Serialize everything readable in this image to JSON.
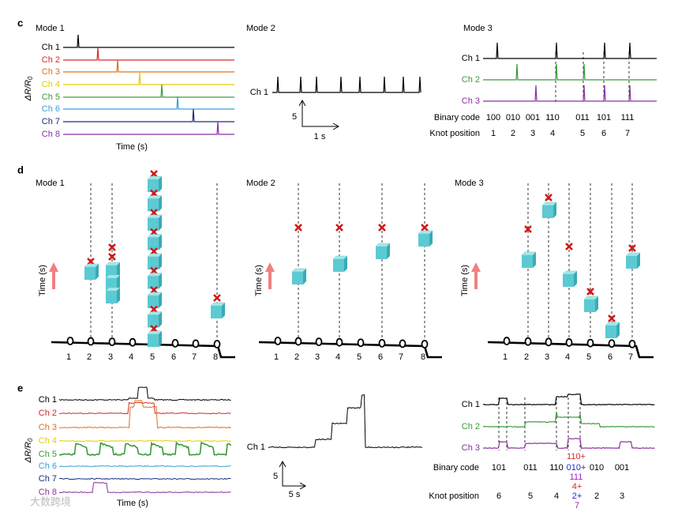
{
  "panel_c": {
    "label": "c",
    "mode1": {
      "title": "Mode 1",
      "y_label": {
        "main": "ΔR/R",
        "sub": "0"
      },
      "x_label": "Time (s)",
      "channels": [
        {
          "name": "Ch 1",
          "color": "#000000"
        },
        {
          "name": "Ch 2",
          "color": "#d42a2a"
        },
        {
          "name": "Ch 3",
          "color": "#e0701e"
        },
        {
          "name": "Ch 4",
          "color": "#e6cc00"
        },
        {
          "name": "Ch 5",
          "color": "#3a9a3a"
        },
        {
          "name": "Ch 6",
          "color": "#3aa0d8"
        },
        {
          "name": "Ch 7",
          "color": "#1a2a80"
        },
        {
          "name": "Ch 8",
          "color": "#8a30a0"
        }
      ]
    },
    "mode2": {
      "title": "Mode 2",
      "channel": "Ch 1",
      "scale_y": "5",
      "scale_x": "1 s"
    },
    "mode3": {
      "title": "Mode 3",
      "channels": [
        {
          "name": "Ch 1",
          "color": "#000000"
        },
        {
          "name": "Ch 2",
          "color": "#3a9a3a"
        },
        {
          "name": "Ch 3",
          "color": "#8a30a0"
        }
      ],
      "binary_label": "Binary code",
      "binary_codes": [
        "100",
        "010",
        "001",
        "110",
        "011",
        "101",
        "111"
      ],
      "knot_label": "Knot position",
      "knot_positions": [
        "1",
        "2",
        "3",
        "4",
        "5",
        "6",
        "7"
      ]
    }
  },
  "panel_d": {
    "label": "d",
    "modes": [
      {
        "title": "Mode 1",
        "y_label": "Time (s)",
        "knots": [
          "1",
          "2",
          "3",
          "4",
          "5",
          "6",
          "7",
          "8"
        ]
      },
      {
        "title": "Mode 2",
        "y_label": "Time (s)",
        "knots": [
          "1",
          "2",
          "3",
          "4",
          "5",
          "6",
          "7",
          "8"
        ]
      },
      {
        "title": "Mode 3",
        "y_label": "Time (s)",
        "knots": [
          "1",
          "2",
          "3",
          "4",
          "5",
          "6",
          "7"
        ]
      }
    ]
  },
  "panel_e": {
    "label": "e",
    "left": {
      "y_label": {
        "main": "ΔR/R",
        "sub": "0"
      },
      "x_label": "Time (s)",
      "channels": [
        {
          "name": "Ch 1",
          "color": "#000000"
        },
        {
          "name": "Ch 2",
          "color": "#d42a2a"
        },
        {
          "name": "Ch 3",
          "color": "#e0701e"
        },
        {
          "name": "Ch 4",
          "color": "#e6cc00"
        },
        {
          "name": "Ch 5",
          "color": "#3a9a3a"
        },
        {
          "name": "Ch 6",
          "color": "#3aa0d8"
        },
        {
          "name": "Ch 7",
          "color": "#1a2a80"
        },
        {
          "name": "Ch 8",
          "color": "#8a30a0"
        }
      ]
    },
    "middle": {
      "channel": "Ch 1",
      "scale_y": "5",
      "scale_x": "5 s"
    },
    "right": {
      "channels": [
        {
          "name": "Ch 1",
          "color": "#000000"
        },
        {
          "name": "Ch 2",
          "color": "#3a9a3a"
        },
        {
          "name": "Ch 3",
          "color": "#8a30a0"
        }
      ],
      "binary_label": "Binary code",
      "binary_codes": [
        {
          "text": "101"
        },
        {
          "text": "011"
        },
        {
          "text": "110"
        },
        {
          "text": "110+",
          "color": "#d42a2a"
        },
        {
          "text": "010+",
          "color": "#2030c0"
        },
        {
          "text": "111",
          "color": "#a020c0"
        },
        {
          "text": "010"
        },
        {
          "text": "001"
        }
      ],
      "knot_label": "Knot position",
      "knot_positions": [
        {
          "text": "6"
        },
        {
          "text": "5"
        },
        {
          "text": "4"
        },
        {
          "text": "4+",
          "color": "#d42a2a"
        },
        {
          "text": "2+",
          "color": "#2030c0"
        },
        {
          "text": "7",
          "color": "#a020c0"
        },
        {
          "text": "2"
        },
        {
          "text": "3"
        }
      ]
    }
  },
  "watermark": "大数跨境"
}
